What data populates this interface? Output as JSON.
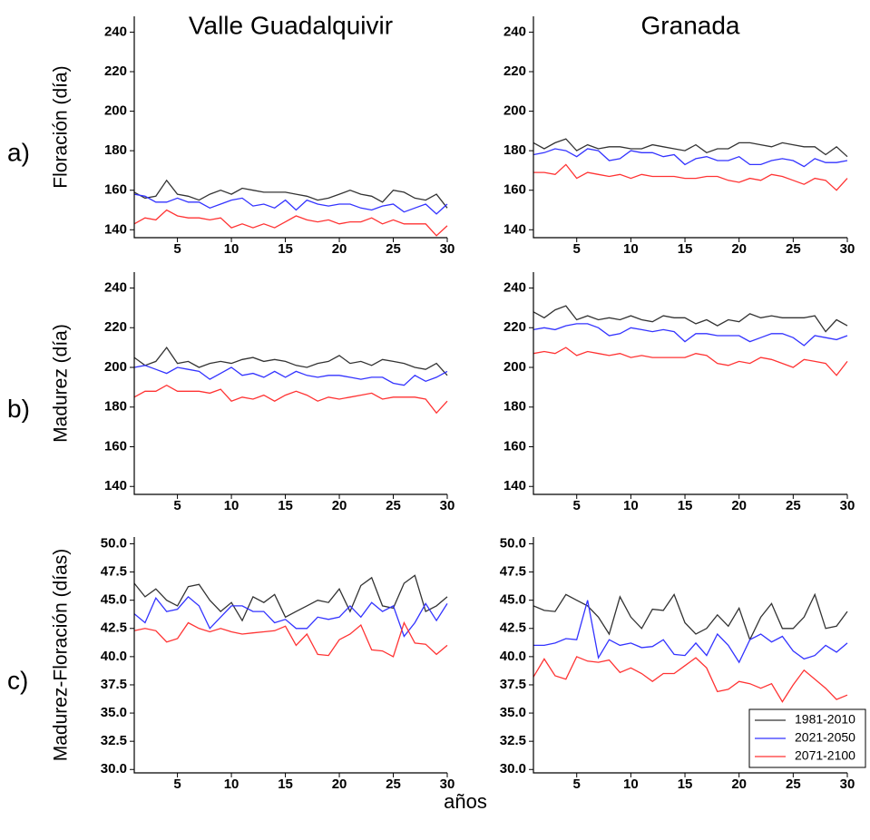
{
  "figure": {
    "xlabel": "años"
  },
  "chart_data": [
    {
      "type": "line",
      "title": "Valle Guadalquivir",
      "panel_label": "a)",
      "ylabel": "Floración (día)",
      "x": [
        1,
        2,
        3,
        4,
        5,
        6,
        7,
        8,
        9,
        10,
        11,
        12,
        13,
        14,
        15,
        16,
        17,
        18,
        19,
        20,
        21,
        22,
        23,
        24,
        25,
        26,
        27,
        28,
        29,
        30
      ],
      "xlim": [
        1,
        30
      ],
      "xticks": [
        5,
        10,
        15,
        20,
        25,
        30
      ],
      "ylim": [
        136,
        248
      ],
      "yticks": [
        140,
        160,
        180,
        200,
        220,
        240
      ],
      "series": [
        {
          "color": "#333333",
          "values": [
            159,
            156,
            157,
            165,
            158,
            157,
            155,
            158,
            160,
            158,
            161,
            160,
            159,
            159,
            159,
            158,
            157,
            155,
            156,
            158,
            160,
            158,
            157,
            154,
            160,
            159,
            156,
            155,
            158,
            151
          ]
        },
        {
          "color": "#3333ff",
          "values": [
            158,
            157,
            154,
            154,
            156,
            154,
            154,
            151,
            153,
            155,
            156,
            152,
            153,
            151,
            155,
            150,
            155,
            153,
            152,
            153,
            153,
            151,
            150,
            152,
            153,
            149,
            151,
            153,
            148,
            153
          ]
        },
        {
          "color": "#ff3333",
          "values": [
            143,
            146,
            145,
            150,
            147,
            146,
            146,
            145,
            146,
            141,
            143,
            141,
            143,
            141,
            144,
            147,
            145,
            144,
            145,
            143,
            144,
            144,
            146,
            143,
            145,
            143,
            143,
            143,
            137,
            142
          ]
        }
      ]
    },
    {
      "type": "line",
      "title": "Granada",
      "x": [
        1,
        2,
        3,
        4,
        5,
        6,
        7,
        8,
        9,
        10,
        11,
        12,
        13,
        14,
        15,
        16,
        17,
        18,
        19,
        20,
        21,
        22,
        23,
        24,
        25,
        26,
        27,
        28,
        29,
        30
      ],
      "xlim": [
        1,
        30
      ],
      "xticks": [
        5,
        10,
        15,
        20,
        25,
        30
      ],
      "ylim": [
        136,
        248
      ],
      "yticks": [
        140,
        160,
        180,
        200,
        220,
        240
      ],
      "series": [
        {
          "color": "#333333",
          "values": [
            184,
            181,
            184,
            186,
            180,
            183,
            181,
            182,
            182,
            181,
            181,
            183,
            182,
            181,
            180,
            183,
            179,
            181,
            181,
            184,
            184,
            183,
            182,
            184,
            183,
            182,
            182,
            178,
            182,
            177
          ]
        },
        {
          "color": "#3333ff",
          "values": [
            178,
            179,
            181,
            180,
            177,
            181,
            180,
            175,
            176,
            180,
            179,
            179,
            177,
            178,
            173,
            176,
            177,
            175,
            175,
            177,
            173,
            173,
            175,
            176,
            175,
            172,
            176,
            174,
            174,
            175
          ]
        },
        {
          "color": "#ff3333",
          "values": [
            169,
            169,
            168,
            173,
            166,
            169,
            168,
            167,
            168,
            166,
            168,
            167,
            167,
            167,
            166,
            166,
            167,
            167,
            165,
            164,
            166,
            165,
            168,
            167,
            165,
            163,
            166,
            165,
            160,
            166
          ]
        }
      ]
    },
    {
      "type": "line",
      "panel_label": "b)",
      "ylabel": "Madurez (día)",
      "x": [
        1,
        2,
        3,
        4,
        5,
        6,
        7,
        8,
        9,
        10,
        11,
        12,
        13,
        14,
        15,
        16,
        17,
        18,
        19,
        20,
        21,
        22,
        23,
        24,
        25,
        26,
        27,
        28,
        29,
        30
      ],
      "xlim": [
        1,
        30
      ],
      "xticks": [
        5,
        10,
        15,
        20,
        25,
        30
      ],
      "ylim": [
        136,
        248
      ],
      "yticks": [
        140,
        160,
        180,
        200,
        220,
        240
      ],
      "series": [
        {
          "color": "#333333",
          "values": [
            205,
            201,
            203,
            210,
            202,
            203,
            200,
            202,
            203,
            202,
            204,
            205,
            203,
            204,
            203,
            201,
            200,
            202,
            203,
            206,
            202,
            203,
            201,
            204,
            203,
            202,
            200,
            199,
            202,
            196
          ]
        },
        {
          "color": "#3333ff",
          "values": [
            200,
            201,
            199,
            197,
            200,
            199,
            198,
            194,
            197,
            200,
            196,
            197,
            195,
            198,
            195,
            198,
            196,
            195,
            196,
            196,
            195,
            194,
            195,
            195,
            192,
            191,
            196,
            193,
            195,
            198
          ]
        },
        {
          "color": "#ff3333",
          "values": [
            185,
            188,
            188,
            191,
            188,
            188,
            188,
            187,
            189,
            183,
            185,
            184,
            186,
            183,
            186,
            188,
            186,
            183,
            185,
            184,
            185,
            186,
            187,
            184,
            185,
            185,
            185,
            184,
            177,
            183
          ]
        }
      ]
    },
    {
      "type": "line",
      "x": [
        1,
        2,
        3,
        4,
        5,
        6,
        7,
        8,
        9,
        10,
        11,
        12,
        13,
        14,
        15,
        16,
        17,
        18,
        19,
        20,
        21,
        22,
        23,
        24,
        25,
        26,
        27,
        28,
        29,
        30
      ],
      "xlim": [
        1,
        30
      ],
      "xticks": [
        5,
        10,
        15,
        20,
        25,
        30
      ],
      "ylim": [
        136,
        248
      ],
      "yticks": [
        140,
        160,
        180,
        200,
        220,
        240
      ],
      "series": [
        {
          "color": "#333333",
          "values": [
            228,
            225,
            229,
            231,
            224,
            226,
            224,
            225,
            224,
            226,
            224,
            223,
            226,
            225,
            225,
            222,
            224,
            221,
            224,
            223,
            227,
            225,
            226,
            225,
            225,
            225,
            226,
            218,
            224,
            221
          ]
        },
        {
          "color": "#3333ff",
          "values": [
            219,
            220,
            219,
            221,
            222,
            222,
            220,
            216,
            217,
            220,
            219,
            218,
            219,
            218,
            213,
            217,
            217,
            216,
            216,
            216,
            213,
            215,
            217,
            217,
            215,
            211,
            216,
            215,
            214,
            216
          ]
        },
        {
          "color": "#ff3333",
          "values": [
            207,
            208,
            207,
            210,
            206,
            208,
            207,
            206,
            207,
            205,
            206,
            205,
            205,
            205,
            205,
            207,
            206,
            202,
            201,
            203,
            202,
            205,
            204,
            202,
            200,
            204,
            203,
            202,
            196,
            203
          ]
        }
      ]
    },
    {
      "type": "line",
      "panel_label": "c)",
      "ylabel": "Madurez-Floración (días)",
      "x": [
        1,
        2,
        3,
        4,
        5,
        6,
        7,
        8,
        9,
        10,
        11,
        12,
        13,
        14,
        15,
        16,
        17,
        18,
        19,
        20,
        21,
        22,
        23,
        24,
        25,
        26,
        27,
        28,
        29,
        30
      ],
      "xlim": [
        1,
        30
      ],
      "xticks": [
        5,
        10,
        15,
        20,
        25,
        30
      ],
      "ylim": [
        29.7,
        50.6
      ],
      "yticks": [
        {
          "value": 30,
          "label": "30.0"
        },
        32.5,
        {
          "value": 35,
          "label": "35.0"
        },
        37.5,
        {
          "value": 40,
          "label": "40.0"
        },
        42.5,
        {
          "value": 45,
          "label": "45.0"
        },
        47.5,
        {
          "value": 50,
          "label": "50.0"
        }
      ],
      "series": [
        {
          "color": "#333333",
          "values": [
            46.5,
            45.3,
            46.0,
            45.0,
            44.5,
            46.2,
            46.4,
            45.0,
            44.0,
            44.8,
            43.2,
            45.3,
            44.8,
            45.5,
            43.5,
            44.0,
            44.5,
            45.0,
            44.8,
            46.0,
            44.0,
            46.3,
            47.0,
            44.5,
            44.3,
            46.5,
            47.2,
            44.0,
            44.5,
            45.3
          ]
        },
        {
          "color": "#3333ff",
          "values": [
            43.8,
            43.0,
            45.2,
            44.0,
            44.2,
            45.3,
            44.5,
            42.5,
            43.5,
            44.5,
            44.5,
            44.0,
            44.0,
            43.0,
            43.3,
            42.5,
            42.5,
            43.5,
            43.3,
            43.5,
            44.5,
            43.5,
            44.8,
            44.0,
            44.5,
            41.8,
            43.0,
            44.7,
            43.2,
            44.7
          ]
        },
        {
          "color": "#ff3333",
          "values": [
            42.3,
            42.5,
            42.3,
            41.3,
            41.6,
            43.0,
            42.5,
            42.2,
            42.5,
            42.2,
            42.0,
            42.1,
            42.2,
            42.3,
            42.7,
            41.0,
            42.0,
            40.2,
            40.1,
            41.5,
            42.0,
            42.8,
            40.6,
            40.5,
            40.0,
            43.0,
            41.2,
            41.1,
            40.2,
            41.0
          ]
        }
      ]
    },
    {
      "type": "line",
      "legend": "lower right",
      "x": [
        1,
        2,
        3,
        4,
        5,
        6,
        7,
        8,
        9,
        10,
        11,
        12,
        13,
        14,
        15,
        16,
        17,
        18,
        19,
        20,
        21,
        22,
        23,
        24,
        25,
        26,
        27,
        28,
        29,
        30
      ],
      "xlim": [
        1,
        30
      ],
      "xticks": [
        5,
        10,
        15,
        20,
        25,
        30
      ],
      "ylim": [
        29.7,
        50.6
      ],
      "yticks": [
        {
          "value": 30,
          "label": "30.0"
        },
        32.5,
        {
          "value": 35,
          "label": "35.0"
        },
        37.5,
        {
          "value": 40,
          "label": "40.0"
        },
        42.5,
        {
          "value": 45,
          "label": "45.0"
        },
        47.5,
        {
          "value": 50,
          "label": "50.0"
        }
      ],
      "series": [
        {
          "name": "1981-2010",
          "color": "#333333",
          "values": [
            44.5,
            44.1,
            44.0,
            45.5,
            45.0,
            44.5,
            43.5,
            42.0,
            45.3,
            43.5,
            42.5,
            44.2,
            44.1,
            45.5,
            43.0,
            42.0,
            42.5,
            43.7,
            42.7,
            44.3,
            41.5,
            43.5,
            44.7,
            42.5,
            42.5,
            43.5,
            45.5,
            42.5,
            42.7,
            44.0
          ]
        },
        {
          "name": "2021-2050",
          "color": "#3333ff",
          "values": [
            41.0,
            41.0,
            41.2,
            41.6,
            41.5,
            45.0,
            39.9,
            41.5,
            41.0,
            41.2,
            40.8,
            40.9,
            41.5,
            40.2,
            40.1,
            41.2,
            40.1,
            42.0,
            41.0,
            39.5,
            41.5,
            42.0,
            41.3,
            41.8,
            40.5,
            39.8,
            40.1,
            41.0,
            40.4,
            41.2
          ]
        },
        {
          "name": "2071-2100",
          "color": "#ff3333",
          "values": [
            38.2,
            39.8,
            38.3,
            38.0,
            40.0,
            39.6,
            39.5,
            39.7,
            38.6,
            39.0,
            38.5,
            37.8,
            38.5,
            38.5,
            39.2,
            39.9,
            39.0,
            36.9,
            37.1,
            37.8,
            37.6,
            37.2,
            37.6,
            36.0,
            37.5,
            38.8,
            38.0,
            37.2,
            36.2,
            36.6
          ]
        }
      ]
    }
  ]
}
